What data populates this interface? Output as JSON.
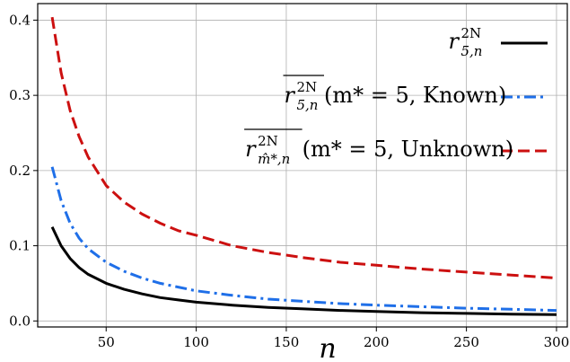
{
  "chart_data": {
    "type": "line",
    "xlabel": "n",
    "ylabel": "",
    "xlim": [
      12,
      306
    ],
    "ylim": [
      -0.008,
      0.422
    ],
    "xticks": [
      50,
      100,
      150,
      200,
      250,
      300
    ],
    "yticks": [
      0.0,
      0.1,
      0.2,
      0.3,
      0.4
    ],
    "xtick_labels": [
      "50",
      "100",
      "150",
      "200",
      "250",
      "300"
    ],
    "ytick_labels": [
      "0.0",
      "0.1",
      "0.2",
      "0.3",
      "0.4"
    ],
    "grid": true,
    "legend_position": "top-right",
    "x": [
      20,
      25,
      30,
      35,
      40,
      50,
      60,
      70,
      80,
      90,
      100,
      120,
      140,
      160,
      180,
      200,
      225,
      250,
      275,
      300
    ],
    "series": [
      {
        "name": "r_{5,n}^{2N}",
        "legend": {
          "base": "r",
          "sup": "2N",
          "sub": "5,n",
          "overline": false,
          "suffix": ""
        },
        "color": "#000000",
        "linestyle": "solid",
        "values": [
          0.125,
          0.1,
          0.083,
          0.071,
          0.062,
          0.05,
          0.042,
          0.036,
          0.031,
          0.028,
          0.025,
          0.021,
          0.018,
          0.016,
          0.014,
          0.0125,
          0.011,
          0.01,
          0.009,
          0.0085
        ]
      },
      {
        "name": "overline{r_{5,n}^{2N}}(m* = 5, Known)",
        "legend": {
          "base": "r",
          "sup": "2N",
          "sub": "5,n",
          "overline": true,
          "suffix": "(m* = 5, Known)"
        },
        "color": "#1f6fe8",
        "linestyle": "dashdot",
        "values": [
          0.205,
          0.16,
          0.13,
          0.11,
          0.096,
          0.078,
          0.066,
          0.057,
          0.05,
          0.045,
          0.04,
          0.034,
          0.029,
          0.026,
          0.023,
          0.021,
          0.019,
          0.017,
          0.0155,
          0.014
        ]
      },
      {
        "name": "overline{r_{m̂*,n}^{2N}}(m* = 5, Unknown)",
        "legend": {
          "base": "r",
          "sup": "2N",
          "sub": "m̂*,n",
          "overline": true,
          "suffix": "(m* = 5, Unknown)"
        },
        "color": "#cc1010",
        "linestyle": "dashed",
        "values": [
          0.404,
          0.33,
          0.28,
          0.245,
          0.218,
          0.18,
          0.158,
          0.142,
          0.13,
          0.12,
          0.114,
          0.1,
          0.091,
          0.084,
          0.078,
          0.074,
          0.069,
          0.065,
          0.061,
          0.057
        ]
      }
    ]
  }
}
